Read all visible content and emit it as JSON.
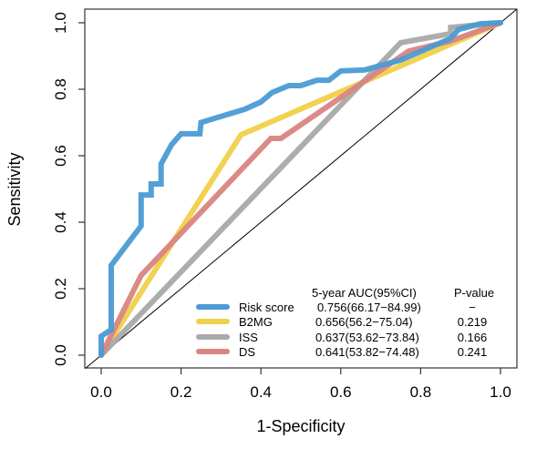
{
  "chart_data": {
    "type": "line",
    "title": "",
    "xlabel": "1-Specificity",
    "ylabel": "Sensitivity",
    "xlim": [
      0,
      1
    ],
    "ylim": [
      0,
      1
    ],
    "x_ticks": [
      "0.0",
      "0.2",
      "0.4",
      "0.6",
      "0.8",
      "1.0"
    ],
    "y_ticks": [
      "0.0",
      "0.2",
      "0.4",
      "0.6",
      "0.8",
      "1.0"
    ],
    "grid": false,
    "reference_line": {
      "name": "diagonal",
      "from": [
        0,
        0
      ],
      "to": [
        1,
        1
      ],
      "color": "#000000"
    },
    "legend": {
      "placement": "bottom-right",
      "auc_header": "5-year AUC(95%CI)",
      "p_header": "P-value"
    },
    "series": [
      {
        "name": "Risk score",
        "color": "#4A9BD4",
        "auc": "0.756(66.17−84.99)",
        "p_value": "−",
        "points": [
          [
            0,
            0
          ],
          [
            0,
            0.057
          ],
          [
            0.025,
            0.077
          ],
          [
            0.025,
            0.27
          ],
          [
            0.1,
            0.389
          ],
          [
            0.1,
            0.482
          ],
          [
            0.125,
            0.482
          ],
          [
            0.125,
            0.515
          ],
          [
            0.15,
            0.515
          ],
          [
            0.15,
            0.575
          ],
          [
            0.176,
            0.633
          ],
          [
            0.2,
            0.666
          ],
          [
            0.247,
            0.666
          ],
          [
            0.25,
            0.7
          ],
          [
            0.36,
            0.74
          ],
          [
            0.4,
            0.762
          ],
          [
            0.428,
            0.79
          ],
          [
            0.47,
            0.811
          ],
          [
            0.5,
            0.811
          ],
          [
            0.54,
            0.827
          ],
          [
            0.57,
            0.827
          ],
          [
            0.6,
            0.855
          ],
          [
            0.66,
            0.858
          ],
          [
            0.75,
            0.888
          ],
          [
            0.875,
            0.953
          ],
          [
            0.895,
            0.98
          ],
          [
            0.95,
            0.997
          ],
          [
            1,
            1
          ]
        ]
      },
      {
        "name": "B2MG",
        "color": "#F0D04A",
        "auc": "0.656(56.2−75.04)",
        "p_value": "0.219",
        "points": [
          [
            0,
            0
          ],
          [
            0.35,
            0.663
          ],
          [
            1,
            1
          ]
        ]
      },
      {
        "name": "ISS",
        "color": "#A9A9A9",
        "auc": "0.637(53.62−73.84)",
        "p_value": "0.166",
        "points": [
          [
            0,
            0
          ],
          [
            0.75,
            0.94
          ],
          [
            0.875,
            0.967
          ],
          [
            0.875,
            0.986
          ],
          [
            1,
            1
          ]
        ]
      },
      {
        "name": "DS",
        "color": "#D98580",
        "auc": "0.641(53.82−74.48)",
        "p_value": "0.241",
        "points": [
          [
            0,
            0
          ],
          [
            0.1,
            0.24
          ],
          [
            0.425,
            0.652
          ],
          [
            0.45,
            0.652
          ],
          [
            0.77,
            0.915
          ],
          [
            0.875,
            0.945
          ],
          [
            1,
            1
          ]
        ]
      }
    ]
  }
}
